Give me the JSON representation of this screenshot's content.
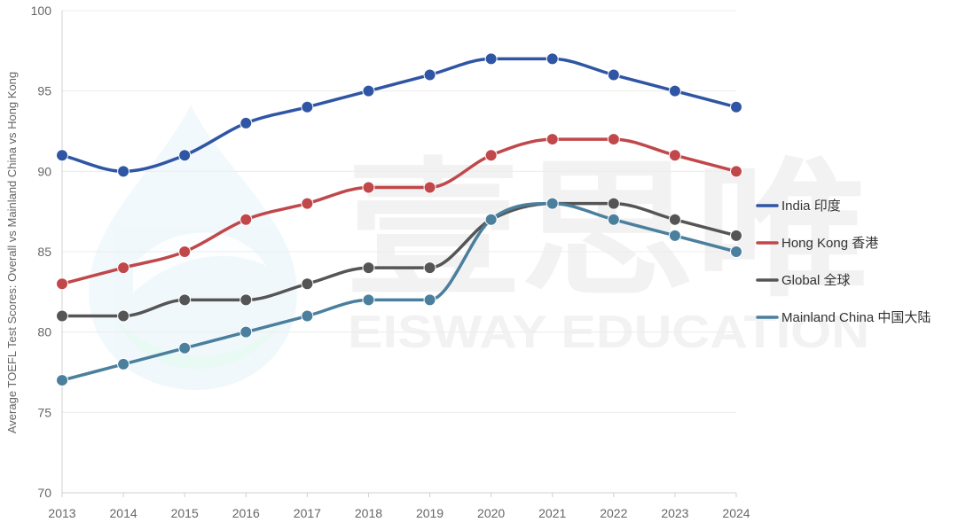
{
  "watermark": {
    "chinese": "壹思唯",
    "english": "EISWAY EDUCATION"
  },
  "chart_data": {
    "type": "line",
    "title": "",
    "xlabel": "",
    "ylabel": "Average TOEFL Test Scores: Overall vs Mainland China vs Hong Kong",
    "ylim": [
      70,
      100
    ],
    "yticks": [
      70,
      75,
      80,
      85,
      90,
      95,
      100
    ],
    "grid": true,
    "legend_position": "right",
    "categories": [
      "2013",
      "2014",
      "2015",
      "2016",
      "2017",
      "2018",
      "2019",
      "2020",
      "2021",
      "2022",
      "2023",
      "2024"
    ],
    "series": [
      {
        "name": "India 印度",
        "color": "#2f55a4",
        "values": [
          91,
          90,
          91,
          93,
          94,
          95,
          96,
          97,
          97,
          96,
          95,
          94
        ]
      },
      {
        "name": "Hong Kong 香港",
        "color": "#c0474a",
        "values": [
          83,
          84,
          85,
          87,
          88,
          89,
          89,
          91,
          92,
          92,
          91,
          90
        ]
      },
      {
        "name": "Global 全球",
        "color": "#555555",
        "values": [
          81,
          81,
          82,
          82,
          83,
          84,
          84,
          87,
          88,
          88,
          87,
          86
        ]
      },
      {
        "name": "Mainland China 中国大陆",
        "color": "#4a7f9e",
        "values": [
          77,
          78,
          79,
          80,
          81,
          82,
          82,
          87,
          88,
          87,
          86,
          85
        ]
      }
    ]
  }
}
